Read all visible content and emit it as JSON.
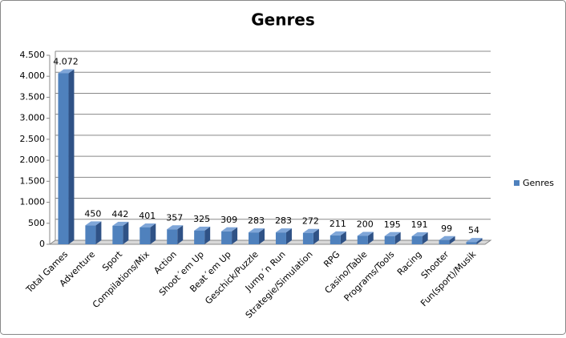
{
  "chart_data": {
    "type": "bar3d",
    "title": "Genres",
    "categories": [
      "Total Games",
      "Adventure",
      "Sport",
      "Compilations/Mix",
      "Action",
      "Shoot´em Up",
      "Beat´em Up",
      "Geschick/Puzzle",
      "Jump´n Run",
      "Strategie/Simulation",
      "RPG",
      "Casino/Table",
      "Programs/Tools",
      "Racing",
      "Shooter",
      "Fun(sport)/Musik"
    ],
    "series": [
      {
        "name": "Genres",
        "color": "#4f81bd",
        "values": [
          4072,
          450,
          442,
          401,
          357,
          325,
          309,
          283,
          283,
          272,
          211,
          200,
          195,
          191,
          99,
          54
        ],
        "value_labels": [
          "4.072",
          "450",
          "442",
          "401",
          "357",
          "325",
          "309",
          "283",
          "283",
          "272",
          "211",
          "200",
          "195",
          "191",
          "99",
          "54"
        ]
      }
    ],
    "ylim": [
      0,
      4500
    ],
    "yticks": [
      0,
      500,
      {
        "value": 1000,
        "label": "1.000"
      },
      {
        "value": 1500,
        "label": "1.500"
      },
      {
        "value": 2000,
        "label": "2.000"
      },
      {
        "value": 2500,
        "label": "2.500"
      },
      {
        "value": 3000,
        "label": "3.000"
      },
      {
        "value": 3500,
        "label": "3.500"
      },
      {
        "value": 4000,
        "label": "4.000"
      },
      {
        "value": 4500,
        "label": "4.500"
      }
    ],
    "grid": true,
    "legend": "right"
  }
}
